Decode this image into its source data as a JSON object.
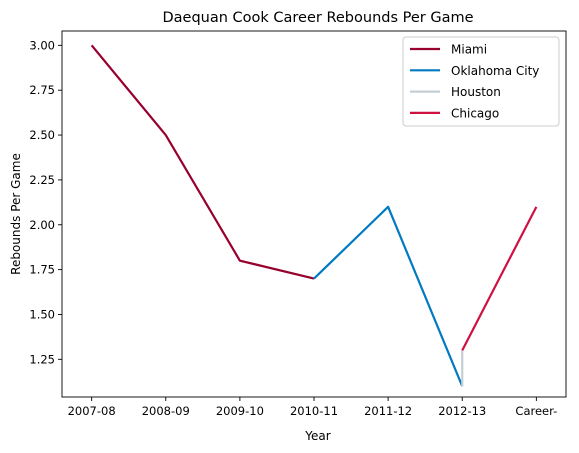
{
  "chart_data": {
    "type": "line",
    "title": "Daequan Cook Career Rebounds Per Game",
    "xlabel": "Year",
    "ylabel": "Rebounds Per Game",
    "categories": [
      "2007-08",
      "2008-09",
      "2009-10",
      "2010-11",
      "2011-12",
      "2012-13",
      "Career-"
    ],
    "y_ticks": [
      "1.25",
      "1.50",
      "1.75",
      "2.00",
      "2.25",
      "2.50",
      "2.75",
      "3.00"
    ],
    "ylim": [
      1.04,
      3.08
    ],
    "grid": false,
    "legend_position": "top-right",
    "series": [
      {
        "name": "Miami",
        "color": "#98002e",
        "points": [
          [
            "2007-08",
            3.0
          ],
          [
            "2008-09",
            2.5
          ],
          [
            "2009-10",
            1.8
          ],
          [
            "2010-11",
            1.7
          ]
        ]
      },
      {
        "name": "Oklahoma City",
        "color": "#007ac1",
        "points": [
          [
            "2010-11",
            1.7
          ],
          [
            "2011-12",
            2.1
          ],
          [
            "2012-13",
            1.1
          ]
        ]
      },
      {
        "name": "Houston",
        "color": "#c4ced4",
        "points": [
          [
            "2012-13",
            1.1
          ],
          [
            "2012-13",
            1.3
          ]
        ]
      },
      {
        "name": "Chicago",
        "color": "#ce1141",
        "points": [
          [
            "2012-13",
            1.3
          ],
          [
            "Career-",
            2.1
          ]
        ]
      }
    ]
  }
}
